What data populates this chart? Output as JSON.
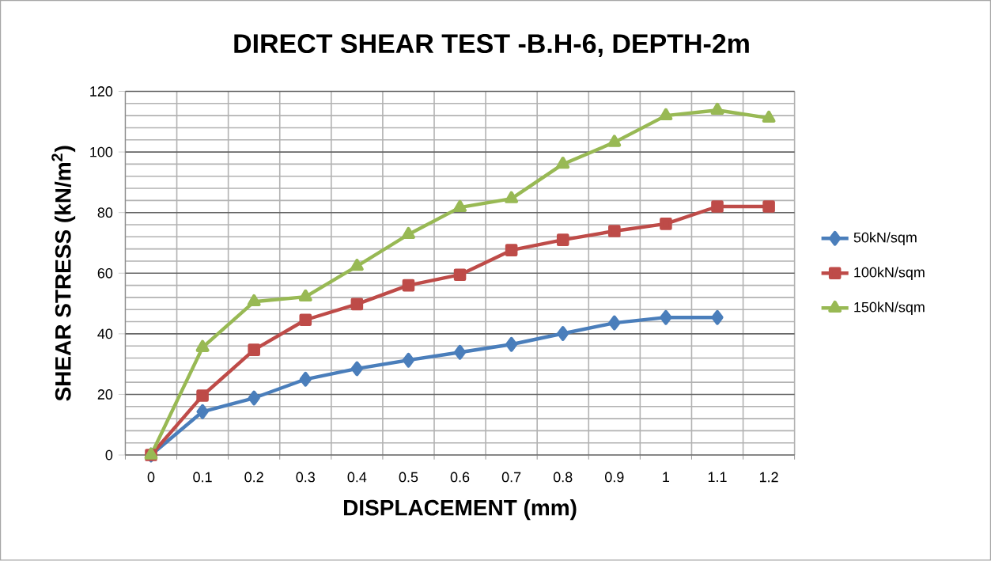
{
  "chart_data": {
    "type": "line",
    "title": "DIRECT SHEAR TEST -B.H-6, DEPTH-2m",
    "xlabel": "DISPLACEMENT (mm)",
    "ylabel": "SHEAR STRESS (kN/m$^{2}$)",
    "categories": [
      "0",
      "0.1",
      "0.2",
      "0.3",
      "0.4",
      "0.5",
      "0.6",
      "0.7",
      "0.8",
      "0.9",
      "1",
      "1.1",
      "1.2"
    ],
    "series": [
      {
        "name": "50kN/sqm",
        "color": "#4a7ebb",
        "marker": "diamond",
        "values": [
          0,
          14.3,
          18.8,
          25,
          28.5,
          31.3,
          33.9,
          36.5,
          40.1,
          43.6,
          45.4,
          45.4,
          null
        ]
      },
      {
        "name": "100kN/sqm",
        "color": "#be4b48",
        "marker": "square",
        "values": [
          0,
          19.6,
          34.7,
          44.6,
          49.8,
          56,
          59.5,
          67.6,
          71,
          73.9,
          76.3,
          82,
          82
        ]
      },
      {
        "name": "150kN/sqm",
        "color": "#98b954",
        "marker": "triangle",
        "values": [
          0,
          35.5,
          50.6,
          52.2,
          62.3,
          72.8,
          81.7,
          84.6,
          96,
          103.2,
          112,
          113.8,
          111.2
        ]
      }
    ],
    "ylim": [
      0,
      120
    ],
    "yticks": [
      0,
      20,
      40,
      60,
      80,
      100,
      120
    ],
    "grid": true,
    "legend": "right",
    "line_style": "solid"
  }
}
